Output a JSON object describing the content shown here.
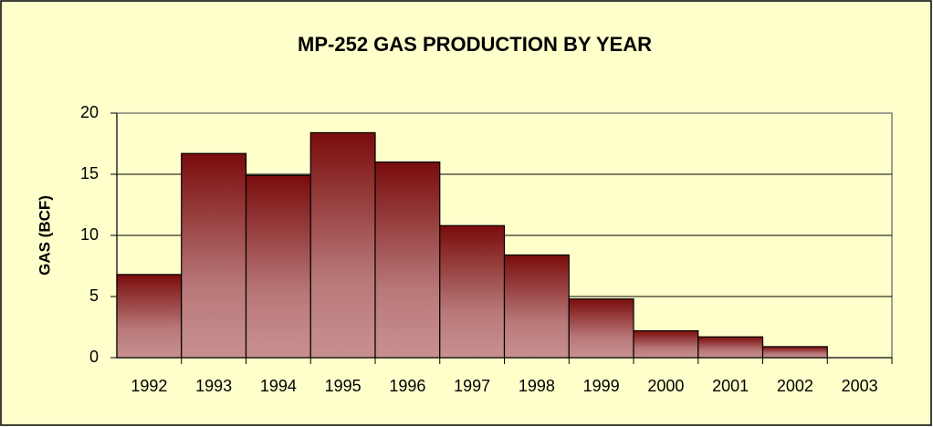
{
  "chart_data": {
    "type": "bar",
    "title": "MP-252 GAS PRODUCTION BY YEAR",
    "y_label": "GAS (BCF)",
    "categories": [
      "1992",
      "1993",
      "1994",
      "1995",
      "1996",
      "1997",
      "1998",
      "1999",
      "2000",
      "2001",
      "2002",
      "2003"
    ],
    "values": [
      6.8,
      16.7,
      14.9,
      18.4,
      16.0,
      10.8,
      8.4,
      4.8,
      2.2,
      1.7,
      0.9,
      0
    ],
    "color": "#7a0c0c",
    "ylim": [
      0,
      20
    ],
    "yticks": [
      0,
      5,
      10,
      15,
      20
    ],
    "grid": true
  }
}
